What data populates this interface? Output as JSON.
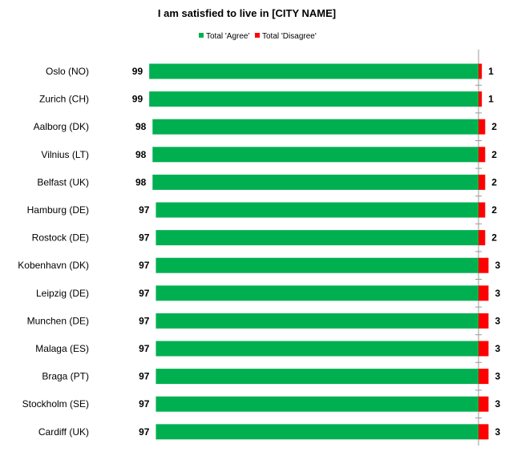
{
  "chart_data": {
    "type": "bar",
    "orientation": "horizontal",
    "stacked": true,
    "title": "I am satisfied to live in [CITY NAME]",
    "legend_position": "top",
    "categories": [
      "Oslo (NO)",
      "Zurich (CH)",
      "Aalborg (DK)",
      "Vilnius (LT)",
      "Belfast (UK)",
      "Hamburg (DE)",
      "Rostock (DE)",
      "Kobenhavn (DK)",
      "Leipzig (DE)",
      "Munchen (DE)",
      "Malaga (ES)",
      "Braga (PT)",
      "Stockholm (SE)",
      "Cardiff (UK)"
    ],
    "series": [
      {
        "name": "Total 'Agree'",
        "color": "#00b050",
        "values": [
          99,
          99,
          98,
          98,
          98,
          97,
          97,
          97,
          97,
          97,
          97,
          97,
          97,
          97
        ]
      },
      {
        "name": "Total 'Disagree'",
        "color": "#ff0000",
        "values": [
          1,
          1,
          2,
          2,
          2,
          2,
          2,
          3,
          3,
          3,
          3,
          3,
          3,
          3
        ]
      }
    ],
    "xlim": [
      0,
      100
    ],
    "grid": false
  }
}
